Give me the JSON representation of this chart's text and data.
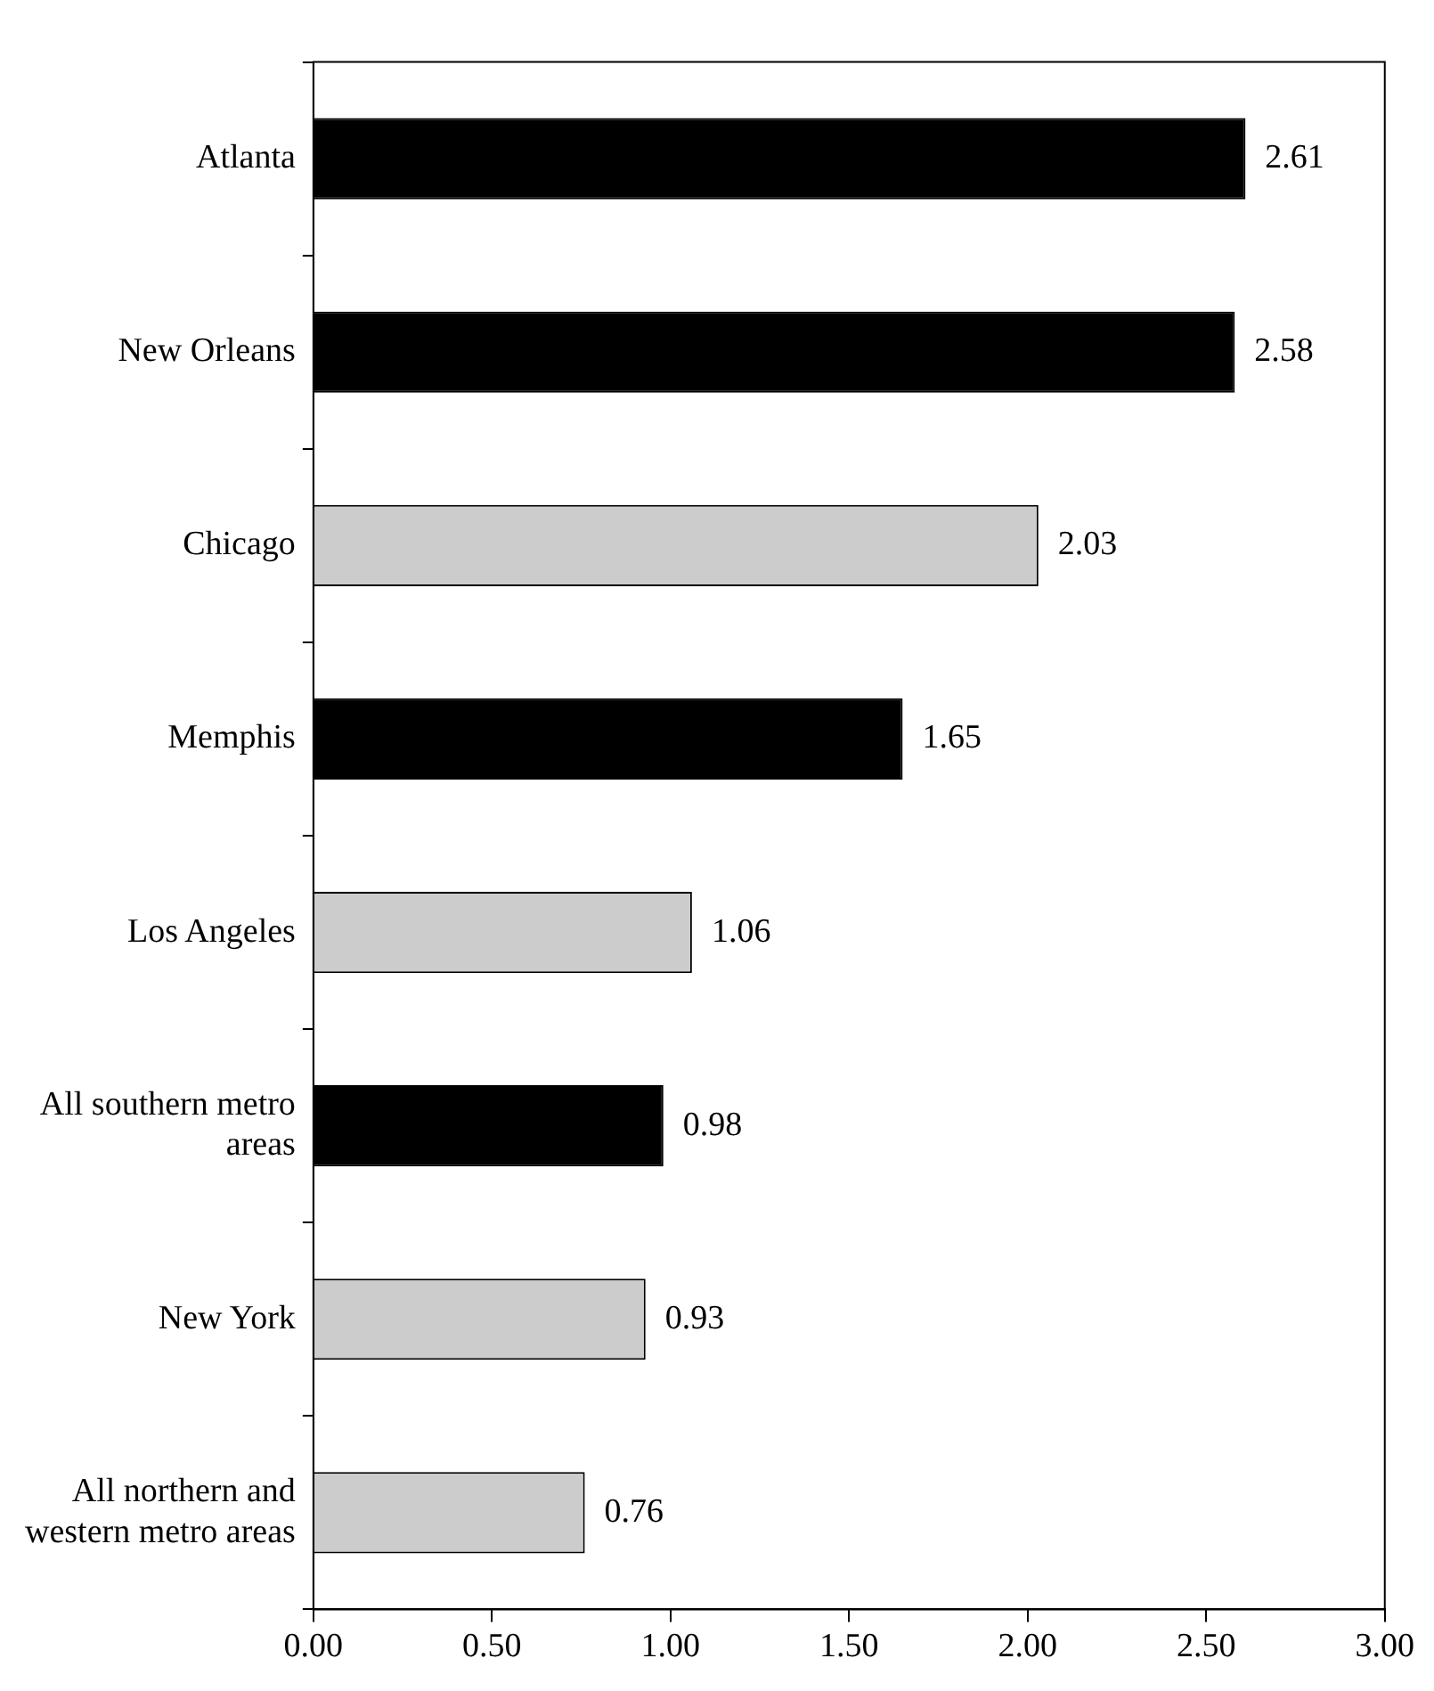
{
  "chart_data": {
    "type": "bar",
    "orientation": "horizontal",
    "categories": [
      "Atlanta",
      "New Orleans",
      "Chicago",
      "Memphis",
      "Los Angeles",
      "All southern metro areas",
      "New York",
      "All northern and western metro areas"
    ],
    "values": [
      2.61,
      2.58,
      2.03,
      1.65,
      1.06,
      0.98,
      0.93,
      0.76
    ],
    "colors": [
      "#000000",
      "#000000",
      "#cccccc",
      "#000000",
      "#cccccc",
      "#000000",
      "#cccccc",
      "#cccccc"
    ],
    "xlim": [
      0,
      3
    ],
    "xticks": [
      {
        "value": 0,
        "label": "0.00"
      },
      {
        "value": 0.5,
        "label": "0.50"
      },
      {
        "value": 1,
        "label": "1.00"
      },
      {
        "value": 1.5,
        "label": "1.50"
      },
      {
        "value": 2,
        "label": "2.00"
      },
      {
        "value": 2.5,
        "label": "2.50"
      },
      {
        "value": 3,
        "label": "3.00"
      }
    ],
    "data_labels": true,
    "grid": false,
    "legend": false
  }
}
